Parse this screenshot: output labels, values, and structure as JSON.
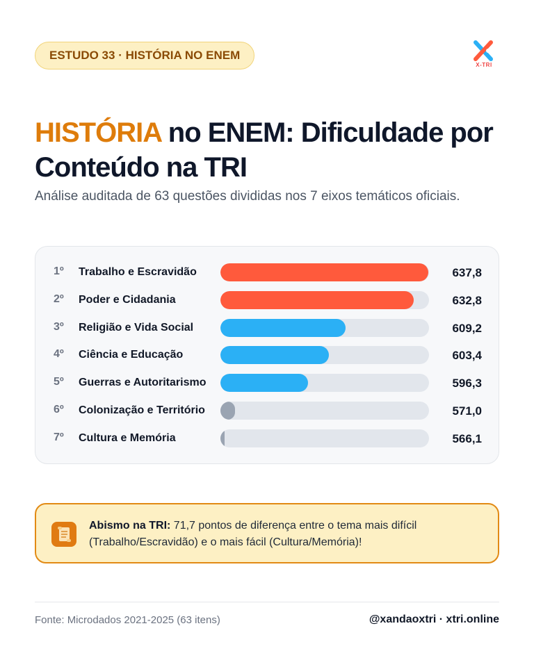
{
  "badge": "ESTUDO 33 · HISTÓRIA NO ENEM",
  "logo": {
    "text": "X-TRI",
    "icon": "xtri-logo-icon"
  },
  "title": {
    "highlight": "HISTÓRIA",
    "rest": " no ENEM: Dificuldade por Conteúdo na TRI"
  },
  "subtitle": "Análise auditada de 63 questões divididas nos 7 eixos temáticos oficiais.",
  "colors": {
    "accent": "#de7c0b",
    "red": "#ff5a3c",
    "blue": "#2bb0f5",
    "gray": "#9aa4b2",
    "track": "#e2e6ec"
  },
  "chart_data": {
    "type": "bar",
    "orientation": "horizontal",
    "xlim": [
      566,
      638
    ],
    "items": [
      {
        "rank": "1º",
        "label": "Trabalho e Escravidão",
        "value": 637.8,
        "value_label": "637,8",
        "color": "#ff5a3c"
      },
      {
        "rank": "2º",
        "label": "Poder e Cidadania",
        "value": 632.8,
        "value_label": "632,8",
        "color": "#ff5a3c"
      },
      {
        "rank": "3º",
        "label": "Religião e Vida Social",
        "value": 609.2,
        "value_label": "609,2",
        "color": "#2bb0f5"
      },
      {
        "rank": "4º",
        "label": "Ciência e Educação",
        "value": 603.4,
        "value_label": "603,4",
        "color": "#2bb0f5"
      },
      {
        "rank": "5º",
        "label": "Guerras e Autoritarismo",
        "value": 596.3,
        "value_label": "596,3",
        "color": "#2bb0f5"
      },
      {
        "rank": "6º",
        "label": "Colonização e Território",
        "value": 571.0,
        "value_label": "571,0",
        "color": "#9aa4b2"
      },
      {
        "rank": "7º",
        "label": "Cultura e Memória",
        "value": 566.1,
        "value_label": "566,1",
        "color": "#9aa4b2"
      }
    ]
  },
  "callout": {
    "icon": "scroll-icon",
    "strong": "Abismo na TRI:",
    "text": " 71,7 pontos de diferença entre o tema mais difícil (Trabalho/Escravidão) e o mais fácil (Cultura/Memória)!"
  },
  "footer": {
    "source": "Fonte: Microdados 2021-2025 (63 itens)",
    "handle": "@xandaoxtri · xtri.online"
  }
}
